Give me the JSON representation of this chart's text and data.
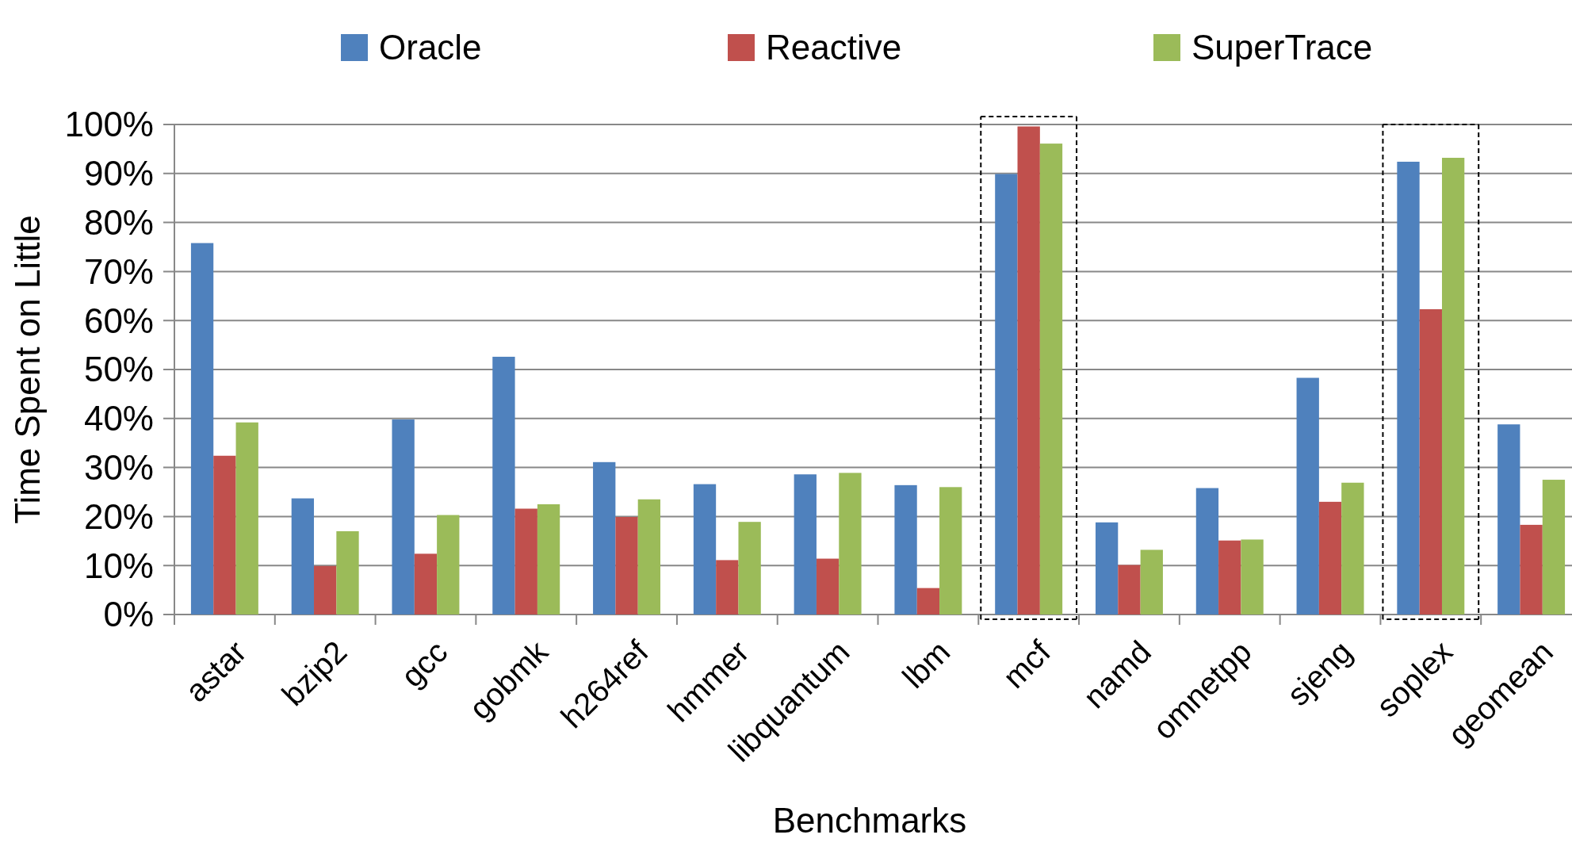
{
  "chart_data": {
    "type": "bar",
    "xlabel": "Benchmarks",
    "ylabel": "Time Spent on Little",
    "categories": [
      "astar",
      "bzip2",
      "gcc",
      "gobmk",
      "h264ref",
      "hmmer",
      "libquantum",
      "lbm",
      "mcf",
      "namd",
      "omnetpp",
      "sjeng",
      "soplex",
      "geomean"
    ],
    "series": [
      {
        "name": "Oracle",
        "color": "#4f81bd",
        "values": [
          75.8,
          23.7,
          39.8,
          52.6,
          31.1,
          26.6,
          28.6,
          26.4,
          89.9,
          18.8,
          25.8,
          48.3,
          92.4,
          38.8
        ]
      },
      {
        "name": "Reactive",
        "color": "#c0504d",
        "values": [
          32.4,
          9.9,
          12.4,
          21.6,
          19.9,
          11.1,
          11.4,
          5.4,
          99.6,
          10.1,
          15.1,
          23.0,
          62.3,
          18.3
        ]
      },
      {
        "name": "SuperTrace",
        "color": "#9bbb59",
        "values": [
          39.2,
          17.0,
          20.3,
          22.5,
          23.5,
          18.9,
          28.9,
          26.0,
          96.1,
          13.2,
          15.3,
          26.9,
          93.2,
          27.5
        ]
      }
    ],
    "ylim": [
      0,
      100
    ],
    "yticks": [
      {
        "value": 0,
        "label": "0%"
      },
      {
        "value": 10,
        "label": "10%"
      },
      {
        "value": 20,
        "label": "20%"
      },
      {
        "value": 30,
        "label": "30%"
      },
      {
        "value": 40,
        "label": "40%"
      },
      {
        "value": 50,
        "label": "50%"
      },
      {
        "value": 60,
        "label": "60%"
      },
      {
        "value": 70,
        "label": "70%"
      },
      {
        "value": 80,
        "label": "80%"
      },
      {
        "value": 90,
        "label": "90%"
      },
      {
        "value": 100,
        "label": "100%"
      }
    ],
    "grid": "y",
    "legend": "top"
  }
}
